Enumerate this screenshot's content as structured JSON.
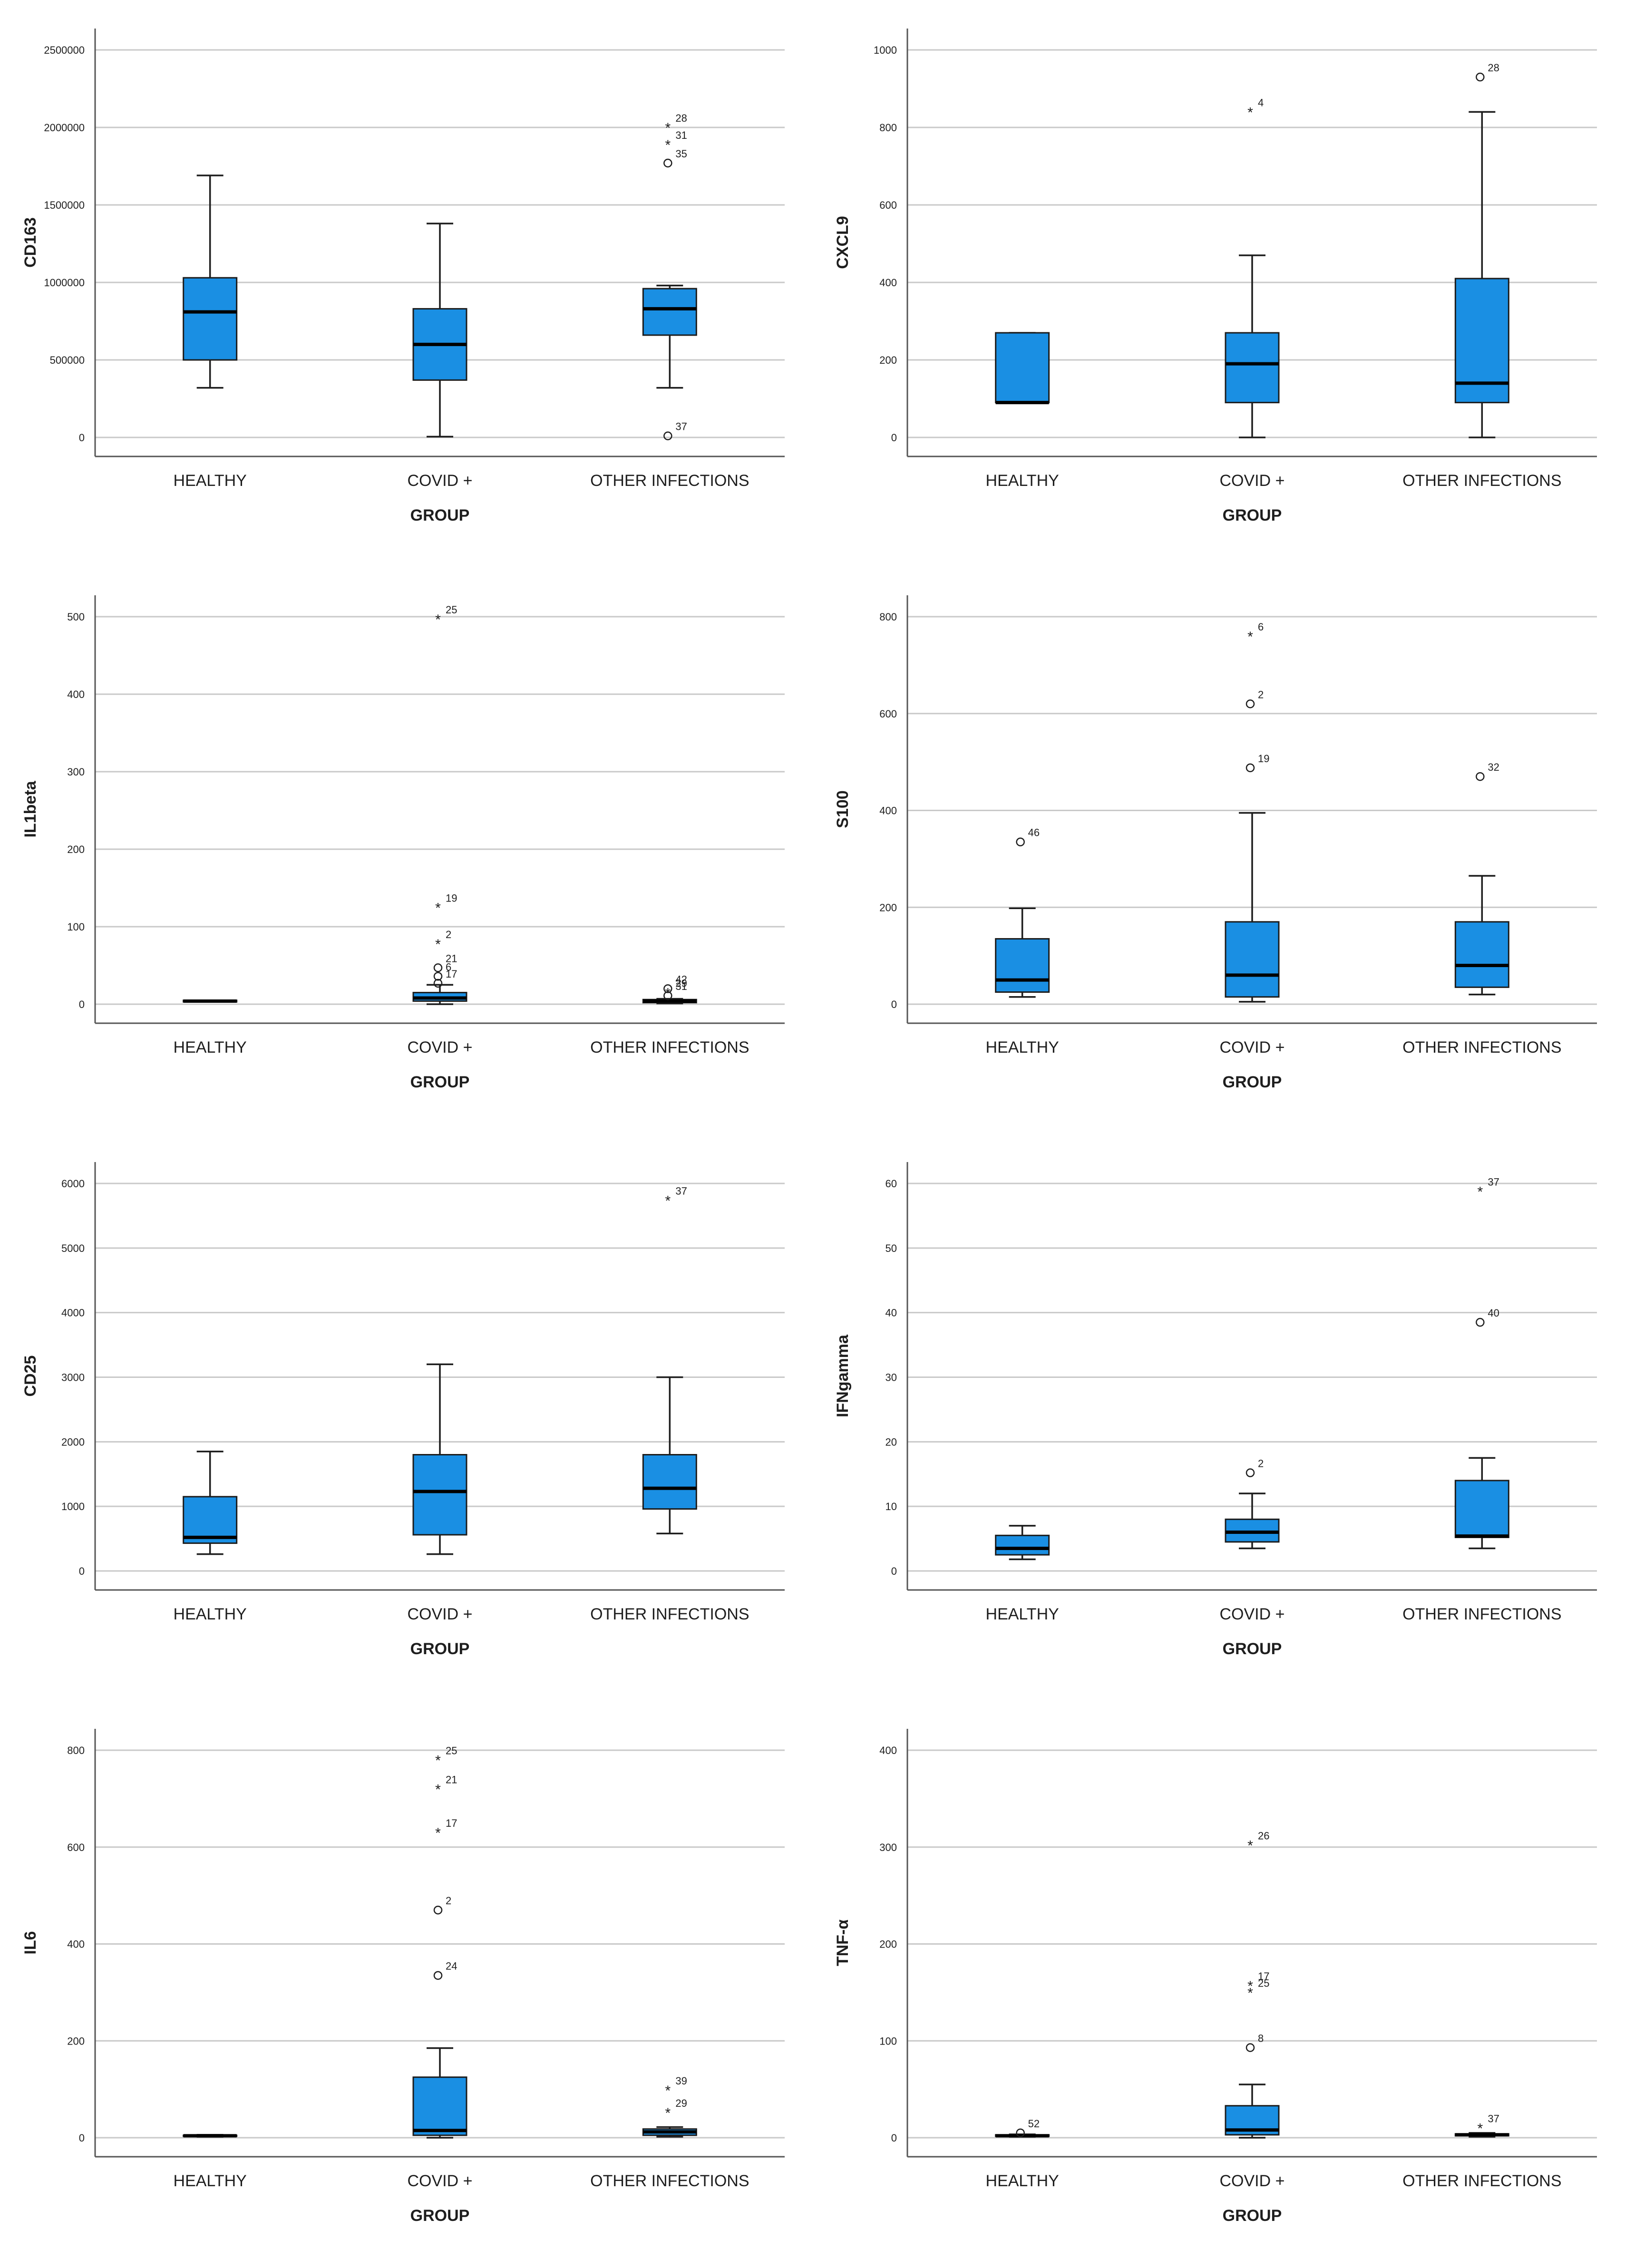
{
  "chart_data": [
    {
      "type": "boxplot",
      "title": "",
      "xlabel": "GROUP",
      "ylabel": "CD163",
      "ylim": [
        0,
        2500000
      ],
      "yticks": [
        0,
        500000,
        1000000,
        1500000,
        2000000,
        2500000
      ],
      "ytick_labels": [
        "0",
        "500000",
        "1000000",
        "1500000",
        "2000000",
        "2500000"
      ],
      "categories": [
        "HEALTHY",
        "COVID +",
        "OTHER INFECTIONS"
      ],
      "boxes": [
        {
          "group": "HEALTHY",
          "whisker_low": 320000,
          "q1": 500000,
          "median": 810000,
          "q3": 1030000,
          "whisker_high": 1690000,
          "outliers": []
        },
        {
          "group": "COVID +",
          "whisker_low": 5000,
          "q1": 370000,
          "median": 600000,
          "q3": 830000,
          "whisker_high": 1380000,
          "outliers": []
        },
        {
          "group": "OTHER INFECTIONS",
          "whisker_low": 320000,
          "q1": 660000,
          "median": 830000,
          "q3": 960000,
          "whisker_high": 980000,
          "outliers": [
            {
              "value": 2000000,
              "label": "28",
              "marker": "star"
            },
            {
              "value": 1890000,
              "label": "31",
              "marker": "star"
            },
            {
              "value": 1770000,
              "label": "35",
              "marker": "circle"
            },
            {
              "value": 10000,
              "label": "37",
              "marker": "circle"
            }
          ]
        }
      ]
    },
    {
      "type": "boxplot",
      "title": "",
      "xlabel": "GROUP",
      "ylabel": "CXCL9",
      "ylim": [
        0,
        1000
      ],
      "yticks": [
        0,
        200,
        400,
        600,
        800,
        1000
      ],
      "ytick_labels": [
        "0",
        "200",
        "400",
        "600",
        "800",
        "1000"
      ],
      "categories": [
        "HEALTHY",
        "COVID +",
        "OTHER INFECTIONS"
      ],
      "boxes": [
        {
          "group": "HEALTHY",
          "whisker_low": 90,
          "q1": 90,
          "median": 90,
          "q3": 270,
          "whisker_high": 270,
          "outliers": []
        },
        {
          "group": "COVID +",
          "whisker_low": 0,
          "q1": 90,
          "median": 190,
          "q3": 270,
          "whisker_high": 470,
          "outliers": [
            {
              "value": 840,
              "label": "4",
              "marker": "star"
            }
          ]
        },
        {
          "group": "OTHER INFECTIONS",
          "whisker_low": 0,
          "q1": 90,
          "median": 140,
          "q3": 410,
          "whisker_high": 840,
          "outliers": [
            {
              "value": 930,
              "label": "28",
              "marker": "circle"
            }
          ]
        }
      ]
    },
    {
      "type": "boxplot",
      "title": "",
      "xlabel": "GROUP",
      "ylabel": "IL1beta",
      "ylim": [
        0,
        500
      ],
      "yticks": [
        0,
        100,
        200,
        300,
        400,
        500
      ],
      "ytick_labels": [
        "0",
        "100",
        "200",
        "300",
        "400",
        "500"
      ],
      "categories": [
        "HEALTHY",
        "COVID +",
        "OTHER INFECTIONS"
      ],
      "boxes": [
        {
          "group": "HEALTHY",
          "whisker_low": 3,
          "q1": 3,
          "median": 4,
          "q3": 5,
          "whisker_high": 5,
          "outliers": []
        },
        {
          "group": "COVID +",
          "whisker_low": 0,
          "q1": 4,
          "median": 8,
          "q3": 15,
          "whisker_high": 25,
          "outliers": [
            {
              "value": 497,
              "label": "25",
              "marker": "star"
            },
            {
              "value": 125,
              "label": "19",
              "marker": "star"
            },
            {
              "value": 78,
              "label": "2",
              "marker": "star"
            },
            {
              "value": 47,
              "label": "21",
              "marker": "circle"
            },
            {
              "value": 36,
              "label": "6",
              "marker": "circle"
            },
            {
              "value": 27,
              "label": "17",
              "marker": "circle"
            }
          ]
        },
        {
          "group": "OTHER INFECTIONS",
          "whisker_low": 1,
          "q1": 2,
          "median": 4,
          "q3": 6,
          "whisker_high": 7,
          "outliers": [
            {
              "value": 20,
              "label": "42",
              "marker": "circle"
            },
            {
              "value": 15,
              "label": "29",
              "marker": "star"
            },
            {
              "value": 11,
              "label": "31",
              "marker": "circle"
            }
          ]
        }
      ]
    },
    {
      "type": "boxplot",
      "title": "",
      "xlabel": "GROUP",
      "ylabel": "S100",
      "ylim": [
        0,
        800
      ],
      "yticks": [
        0,
        200,
        400,
        600,
        800
      ],
      "ytick_labels": [
        "0",
        "200",
        "400",
        "600",
        "800"
      ],
      "categories": [
        "HEALTHY",
        "COVID +",
        "OTHER INFECTIONS"
      ],
      "boxes": [
        {
          "group": "HEALTHY",
          "whisker_low": 15,
          "q1": 25,
          "median": 50,
          "q3": 135,
          "whisker_high": 198,
          "outliers": [
            {
              "value": 335,
              "label": "46",
              "marker": "circle"
            }
          ]
        },
        {
          "group": "COVID +",
          "whisker_low": 5,
          "q1": 15,
          "median": 60,
          "q3": 170,
          "whisker_high": 395,
          "outliers": [
            {
              "value": 760,
              "label": "6",
              "marker": "star"
            },
            {
              "value": 620,
              "label": "2",
              "marker": "circle"
            },
            {
              "value": 488,
              "label": "19",
              "marker": "circle"
            }
          ]
        },
        {
          "group": "OTHER INFECTIONS",
          "whisker_low": 20,
          "q1": 35,
          "median": 80,
          "q3": 170,
          "whisker_high": 265,
          "outliers": [
            {
              "value": 470,
              "label": "32",
              "marker": "circle"
            }
          ]
        }
      ]
    },
    {
      "type": "boxplot",
      "title": "",
      "xlabel": "GROUP",
      "ylabel": "CD25",
      "ylim": [
        0,
        6000
      ],
      "yticks": [
        0,
        1000,
        2000,
        3000,
        4000,
        5000,
        6000
      ],
      "ytick_labels": [
        "0",
        "1000",
        "2000",
        "3000",
        "4000",
        "5000",
        "6000"
      ],
      "categories": [
        "HEALTHY",
        "COVID +",
        "OTHER INFECTIONS"
      ],
      "boxes": [
        {
          "group": "HEALTHY",
          "whisker_low": 260,
          "q1": 430,
          "median": 520,
          "q3": 1150,
          "whisker_high": 1850,
          "outliers": []
        },
        {
          "group": "COVID +",
          "whisker_low": 260,
          "q1": 560,
          "median": 1230,
          "q3": 1800,
          "whisker_high": 3200,
          "outliers": []
        },
        {
          "group": "OTHER INFECTIONS",
          "whisker_low": 580,
          "q1": 960,
          "median": 1280,
          "q3": 1800,
          "whisker_high": 3000,
          "outliers": [
            {
              "value": 5740,
              "label": "37",
              "marker": "star"
            }
          ]
        }
      ]
    },
    {
      "type": "boxplot",
      "title": "",
      "xlabel": "GROUP",
      "ylabel": "IFNgamma",
      "ylim": [
        0,
        60
      ],
      "yticks": [
        0,
        10,
        20,
        30,
        40,
        50,
        60
      ],
      "ytick_labels": [
        "0",
        "10",
        "20",
        "30",
        "40",
        "50",
        "60"
      ],
      "categories": [
        "HEALTHY",
        "COVID +",
        "OTHER INFECTIONS"
      ],
      "boxes": [
        {
          "group": "HEALTHY",
          "whisker_low": 1.8,
          "q1": 2.5,
          "median": 3.5,
          "q3": 5.5,
          "whisker_high": 7,
          "outliers": []
        },
        {
          "group": "COVID +",
          "whisker_low": 3.5,
          "q1": 4.5,
          "median": 6,
          "q3": 8,
          "whisker_high": 12,
          "outliers": [
            {
              "value": 15.2,
              "label": "2",
              "marker": "circle"
            }
          ]
        },
        {
          "group": "OTHER INFECTIONS",
          "whisker_low": 3.5,
          "q1": 5.2,
          "median": 5.4,
          "q3": 14,
          "whisker_high": 17.5,
          "outliers": [
            {
              "value": 58.8,
              "label": "37",
              "marker": "star"
            },
            {
              "value": 38.5,
              "label": "40",
              "marker": "circle"
            }
          ]
        }
      ]
    },
    {
      "type": "boxplot",
      "title": "",
      "xlabel": "GROUP",
      "ylabel": "IL6",
      "ylim": [
        0,
        800
      ],
      "yticks": [
        0,
        200,
        400,
        600,
        800
      ],
      "ytick_labels": [
        "0",
        "200",
        "400",
        "600",
        "800"
      ],
      "categories": [
        "HEALTHY",
        "COVID +",
        "OTHER INFECTIONS"
      ],
      "boxes": [
        {
          "group": "HEALTHY",
          "whisker_low": 2,
          "q1": 3,
          "median": 4,
          "q3": 5,
          "whisker_high": 6,
          "outliers": []
        },
        {
          "group": "COVID +",
          "whisker_low": 0,
          "q1": 5,
          "median": 15,
          "q3": 125,
          "whisker_high": 185,
          "outliers": [
            {
              "value": 780,
              "label": "25",
              "marker": "star"
            },
            {
              "value": 720,
              "label": "21",
              "marker": "star"
            },
            {
              "value": 630,
              "label": "17",
              "marker": "star"
            },
            {
              "value": 470,
              "label": "2",
              "marker": "circle"
            },
            {
              "value": 335,
              "label": "24",
              "marker": "circle"
            }
          ]
        },
        {
          "group": "OTHER INFECTIONS",
          "whisker_low": 2,
          "q1": 5,
          "median": 12,
          "q3": 18,
          "whisker_high": 22,
          "outliers": [
            {
              "value": 98,
              "label": "39",
              "marker": "star"
            },
            {
              "value": 52,
              "label": "29",
              "marker": "star"
            }
          ]
        }
      ]
    },
    {
      "type": "boxplot",
      "title": "",
      "xlabel": "GROUP",
      "ylabel": "TNF-α",
      "ylim": [
        0,
        400
      ],
      "yticks": [
        0,
        100,
        200,
        300,
        400
      ],
      "ytick_labels": [
        "0",
        "100",
        "200",
        "300",
        "400"
      ],
      "categories": [
        "HEALTHY",
        "COVID +",
        "OTHER INFECTIONS"
      ],
      "boxes": [
        {
          "group": "HEALTHY",
          "whisker_low": 1,
          "q1": 1.5,
          "median": 2,
          "q3": 3,
          "whisker_high": 3.5,
          "outliers": [
            {
              "value": 5,
              "label": "52",
              "marker": "circle"
            }
          ]
        },
        {
          "group": "COVID +",
          "whisker_low": 0,
          "q1": 3,
          "median": 8,
          "q3": 33,
          "whisker_high": 55,
          "outliers": [
            {
              "value": 302,
              "label": "26",
              "marker": "star"
            },
            {
              "value": 157,
              "label": "17",
              "marker": "star"
            },
            {
              "value": 150,
              "label": "25",
              "marker": "star"
            },
            {
              "value": 93,
              "label": "8",
              "marker": "circle"
            }
          ]
        },
        {
          "group": "OTHER INFECTIONS",
          "whisker_low": 1,
          "q1": 2,
          "median": 3,
          "q3": 4,
          "whisker_high": 5,
          "outliers": [
            {
              "value": 10,
              "label": "37",
              "marker": "star"
            }
          ]
        }
      ]
    }
  ],
  "style": {
    "box_fill": "#1a8fe3",
    "box_stroke": "#1c1c1c",
    "median_color": "#000000",
    "grid_color": "#c9c9c9",
    "axis_color": "#555555",
    "text_color": "#1e1e1e"
  }
}
